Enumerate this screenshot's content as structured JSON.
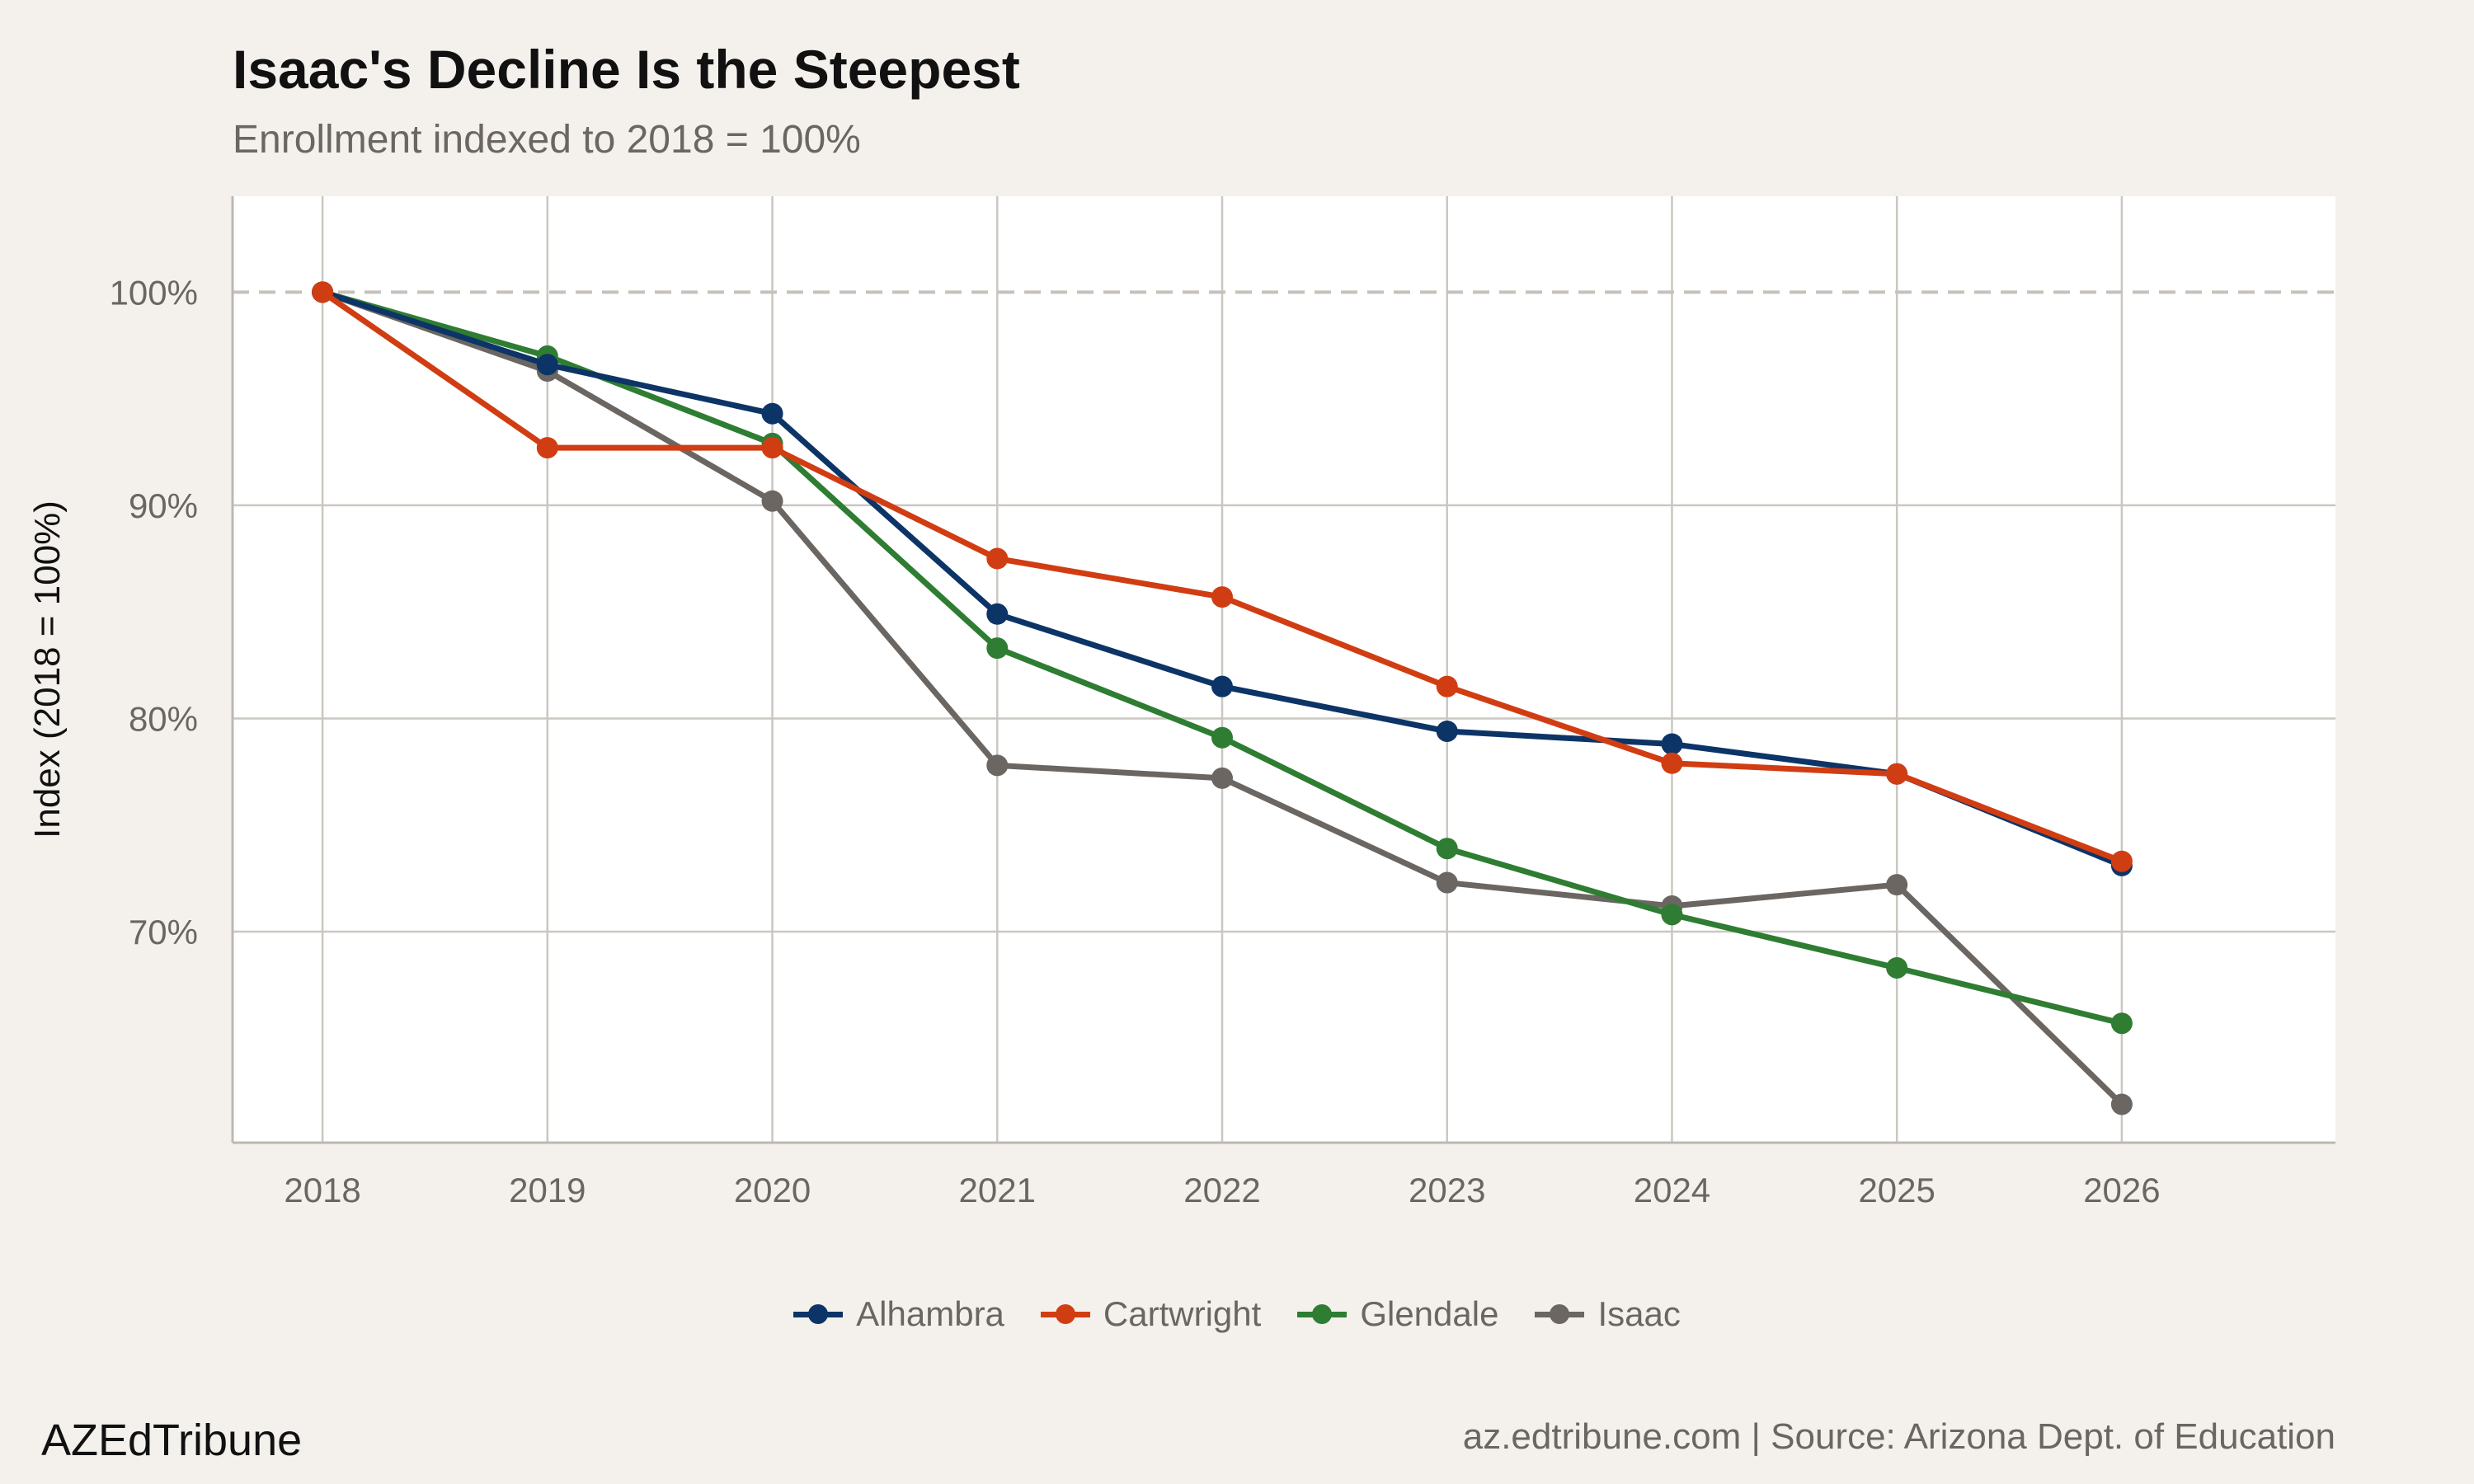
{
  "chart_data": {
    "type": "line",
    "title": "Isaac's Decline Is the Steepest",
    "subtitle": "Enrollment indexed to 2018 = 100%",
    "xlabel": "",
    "ylabel": "Index (2018 = 100%)",
    "x": [
      2018,
      2019,
      2020,
      2021,
      2022,
      2023,
      2024,
      2025,
      2026
    ],
    "x_tick_labels": [
      "2018",
      "2019",
      "2020",
      "2021",
      "2022",
      "2023",
      "2024",
      "2025",
      "2026"
    ],
    "xlim": [
      2017.6,
      2026.95
    ],
    "ylim": [
      60.1,
      104.5
    ],
    "y_ticks": [
      70,
      80,
      90,
      100
    ],
    "y_tick_labels": [
      "70%",
      "80%",
      "90%",
      "100%"
    ],
    "reference_line": 100,
    "grid": true,
    "legend_position": "bottom",
    "series": [
      {
        "name": "Alhambra",
        "color": "#0d3466",
        "values": [
          100,
          96.6,
          94.3,
          84.9,
          81.5,
          79.4,
          78.8,
          77.4,
          73.1
        ]
      },
      {
        "name": "Cartwright",
        "color": "#d13d12",
        "values": [
          100,
          92.7,
          92.7,
          87.5,
          85.7,
          81.5,
          77.9,
          77.4,
          73.3
        ]
      },
      {
        "name": "Glendale",
        "color": "#2e7d32",
        "values": [
          100,
          97.0,
          92.9,
          83.3,
          79.1,
          73.9,
          70.8,
          68.3,
          65.7
        ]
      },
      {
        "name": "Isaac",
        "color": "#6b6662",
        "values": [
          100,
          96.3,
          90.2,
          77.8,
          77.2,
          72.3,
          71.2,
          72.2,
          61.9
        ]
      }
    ]
  },
  "footer": {
    "brand": "AZEdTribune",
    "source": "az.edtribune.com | Source: Arizona Dept. of Education"
  }
}
